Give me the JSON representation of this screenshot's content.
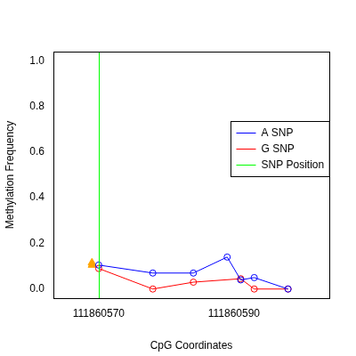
{
  "chart_data": {
    "type": "line",
    "x_label": "CpG Coordinates",
    "y_label": "Methylation Frequency",
    "series": [
      {
        "name": "A SNP",
        "color": "#0000ff",
        "marker": "circle",
        "line_style": "solid",
        "x": [
          111860570,
          111860578,
          111860584,
          111860589,
          111860591,
          111860593,
          111860598
        ],
        "values": [
          0.105,
          0.07,
          0.07,
          0.14,
          0.04,
          0.05,
          0.0
        ]
      },
      {
        "name": "G SNP",
        "color": "#ff0000",
        "marker": "circle",
        "line_style": "solid",
        "x": [
          111860570,
          111860578,
          111860584,
          111860591,
          111860593,
          111860598
        ],
        "values": [
          0.09,
          0.0,
          0.03,
          0.045,
          0.0,
          0.0
        ]
      },
      {
        "name": "SNP Position",
        "color": "#00ff00",
        "line_style": "solid",
        "x": [
          111860570
        ]
      }
    ],
    "snp_markers": {
      "x": [
        111860569,
        111860569
      ],
      "values": [
        0.115,
        0.105
      ],
      "color": "#ffa500",
      "marker": "triangle"
    },
    "xlim": [
      111860563.3,
      111860604.1
    ],
    "xticks": [
      111860570,
      111860590
    ],
    "ylim": [
      -0.04,
      1.04
    ],
    "yticks": [
      {
        "value": 0,
        "label": "0.0"
      },
      {
        "value": 0.2,
        "label": "0.2"
      },
      {
        "value": 0.4,
        "label": "0.4"
      },
      {
        "value": 0.6,
        "label": "0.6"
      },
      {
        "value": 0.8,
        "label": "0.8"
      },
      {
        "value": 1,
        "label": "1.0"
      }
    ],
    "grid": false,
    "legend": "right"
  }
}
